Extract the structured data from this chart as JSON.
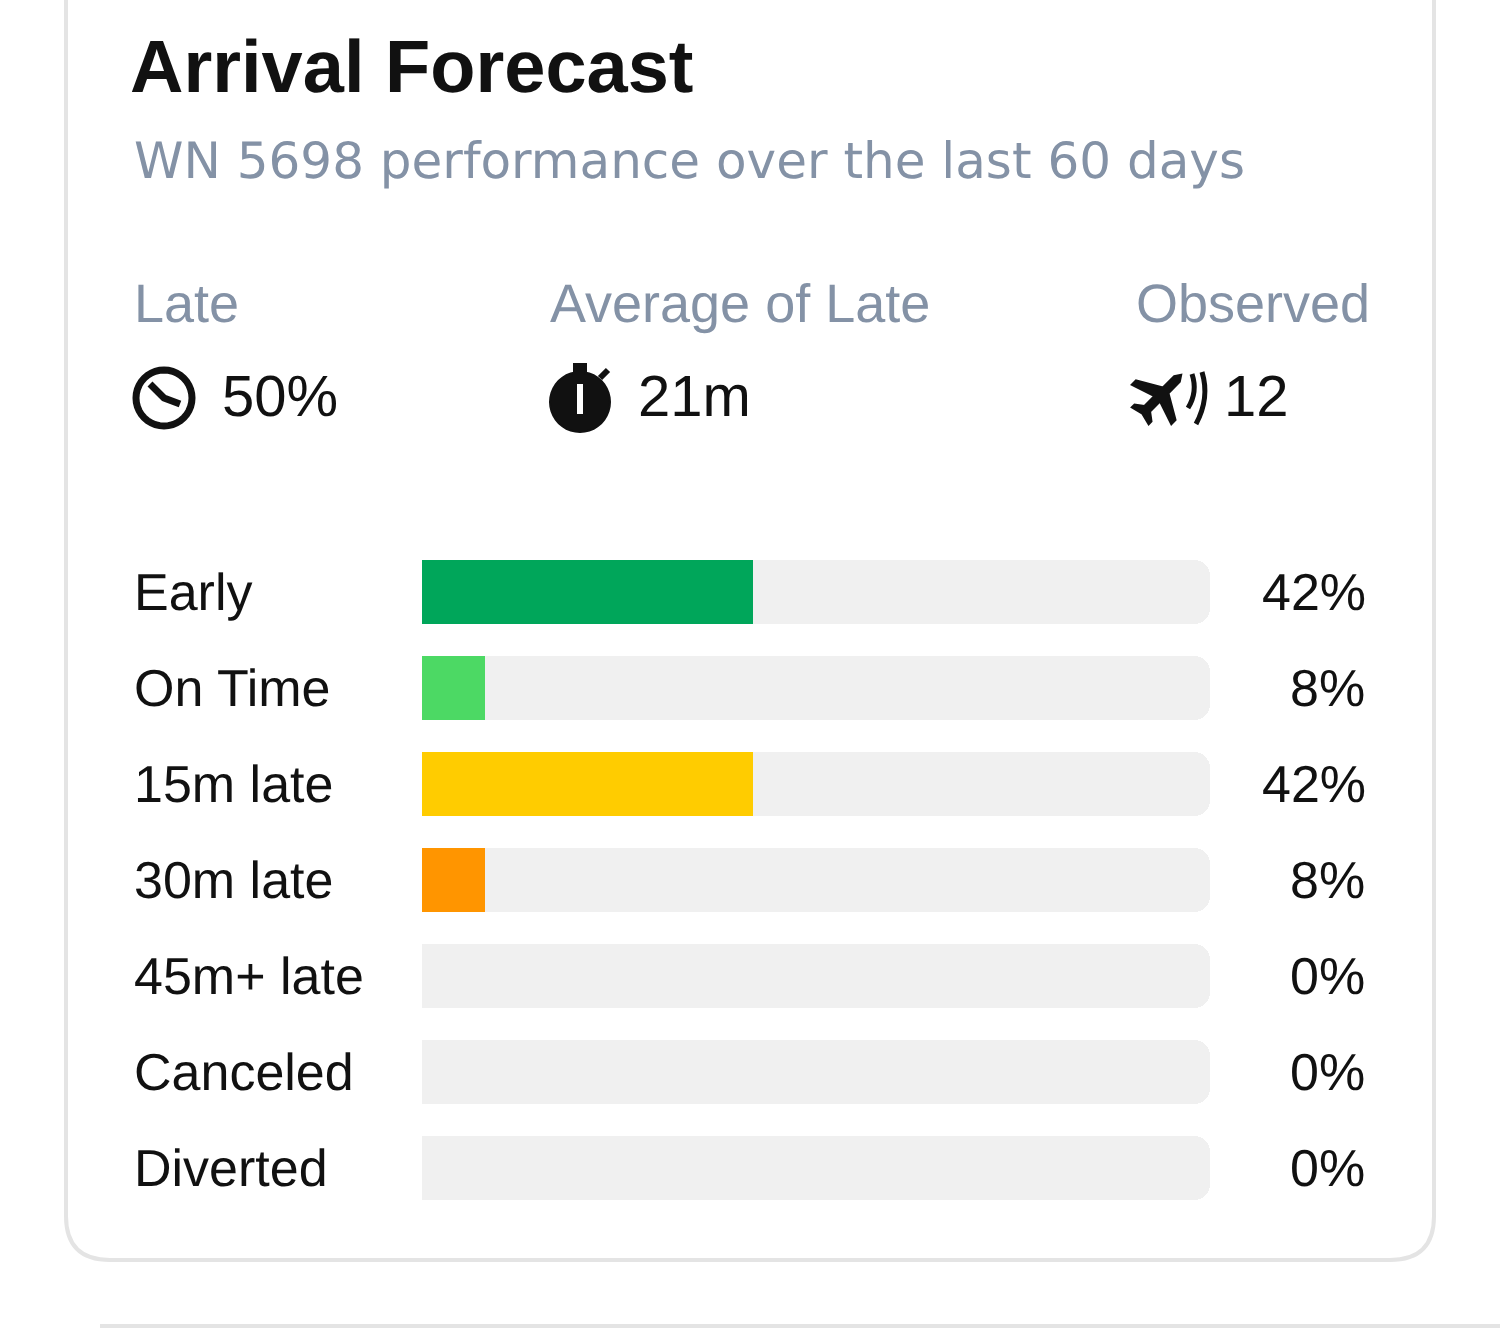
{
  "chart_data": {
    "type": "bar",
    "orientation": "horizontal",
    "stacked": true,
    "title": "Arrival Forecast",
    "subtitle": "WN 5698 performance over the last 60 days",
    "annotations": [
      "Late",
      "50%",
      "Average of Late",
      "21m",
      "Observed",
      "12"
    ],
    "categories": [
      "Early",
      "On Time",
      "15m late",
      "30m late",
      "45m+ late",
      "Canceled",
      "Diverted"
    ],
    "series": [
      {
        "colors": [
          "#00a65a",
          "#4cd964",
          "#ffcc00",
          "#ff9500",
          null,
          null,
          null
        ],
        "values": [
          42,
          8,
          42,
          8,
          0,
          0,
          0
        ],
        "value_labels": [
          "42%",
          "8%",
          "42%",
          "8%",
          "0%",
          "0%",
          "0%"
        ]
      },
      {
        "color": "#f0f0f0",
        "values": [
          58,
          92,
          58,
          92,
          100,
          100,
          100
        ]
      }
    ],
    "xlim": [
      0,
      100
    ],
    "tick_labels": "y"
  }
}
